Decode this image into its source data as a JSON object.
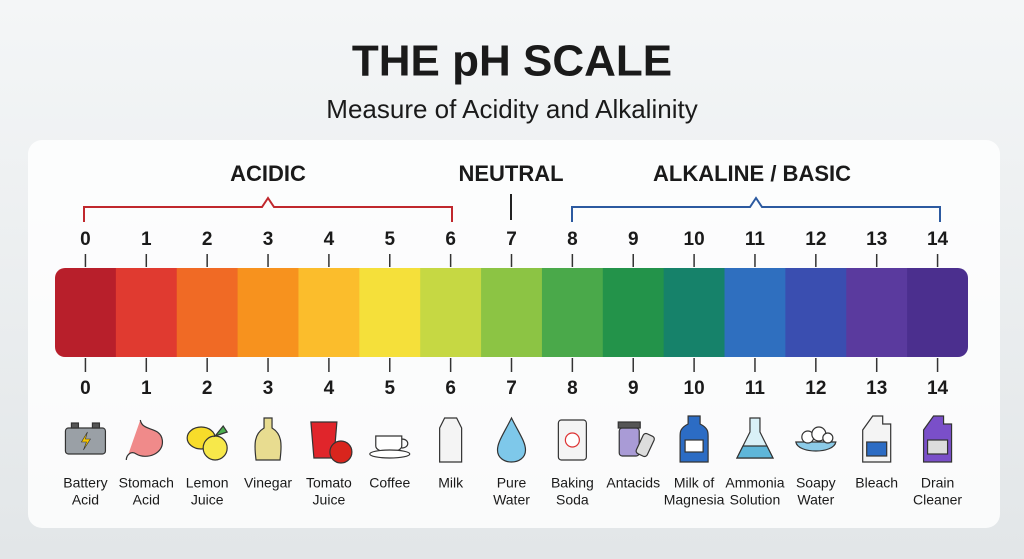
{
  "header": {
    "title": "THE pH SCALE",
    "subtitle": "Measure of Acidity and Alkalinity"
  },
  "groups": [
    {
      "label": "ACIDIC"
    },
    {
      "label": "NEUTRAL"
    },
    {
      "label": "ALKALINE / BASIC"
    }
  ],
  "scale": {
    "levels": [
      {
        "ph": "0",
        "color": "#b81f2b"
      },
      {
        "ph": "1",
        "color": "#e03a30"
      },
      {
        "ph": "2",
        "color": "#f06a25"
      },
      {
        "ph": "3",
        "color": "#f7921e"
      },
      {
        "ph": "4",
        "color": "#fbbd2c"
      },
      {
        "ph": "5",
        "color": "#f5e03a"
      },
      {
        "ph": "6",
        "color": "#c6d843"
      },
      {
        "ph": "7",
        "color": "#8cc444"
      },
      {
        "ph": "8",
        "color": "#4aa94a"
      },
      {
        "ph": "9",
        "color": "#23934a"
      },
      {
        "ph": "10",
        "color": "#16826a"
      },
      {
        "ph": "11",
        "color": "#2f6fbf"
      },
      {
        "ph": "12",
        "color": "#3a4eb0"
      },
      {
        "ph": "13",
        "color": "#5a3a9e"
      },
      {
        "ph": "14",
        "color": "#4b2f8e"
      }
    ]
  },
  "substances": [
    {
      "ph": "0",
      "name": [
        "Battery",
        "Acid"
      ]
    },
    {
      "ph": "1",
      "name": [
        "Stomach",
        "Acid"
      ]
    },
    {
      "ph": "2",
      "name": [
        "Lemon",
        "Juice"
      ]
    },
    {
      "ph": "3",
      "name": [
        "Vinegar"
      ]
    },
    {
      "ph": "4",
      "name": [
        "Tomato",
        "Juice"
      ]
    },
    {
      "ph": "5",
      "name": [
        "Coffee"
      ]
    },
    {
      "ph": "6",
      "name": [
        "Milk"
      ]
    },
    {
      "ph": "7",
      "name": [
        "Pure",
        "Water"
      ]
    },
    {
      "ph": "8",
      "name": [
        "Baking",
        "Soda"
      ]
    },
    {
      "ph": "9",
      "name": [
        "Antacids"
      ]
    },
    {
      "ph": "10",
      "name": [
        "Milk of",
        "Magnesia"
      ]
    },
    {
      "ph": "11",
      "name": [
        "Ammonia",
        "Solution"
      ]
    },
    {
      "ph": "12",
      "name": [
        "Soapy",
        "Water"
      ]
    },
    {
      "ph": "13",
      "name": [
        "Bleach"
      ]
    },
    {
      "ph": "14",
      "name": [
        "Drain",
        "Cleaner"
      ]
    }
  ]
}
